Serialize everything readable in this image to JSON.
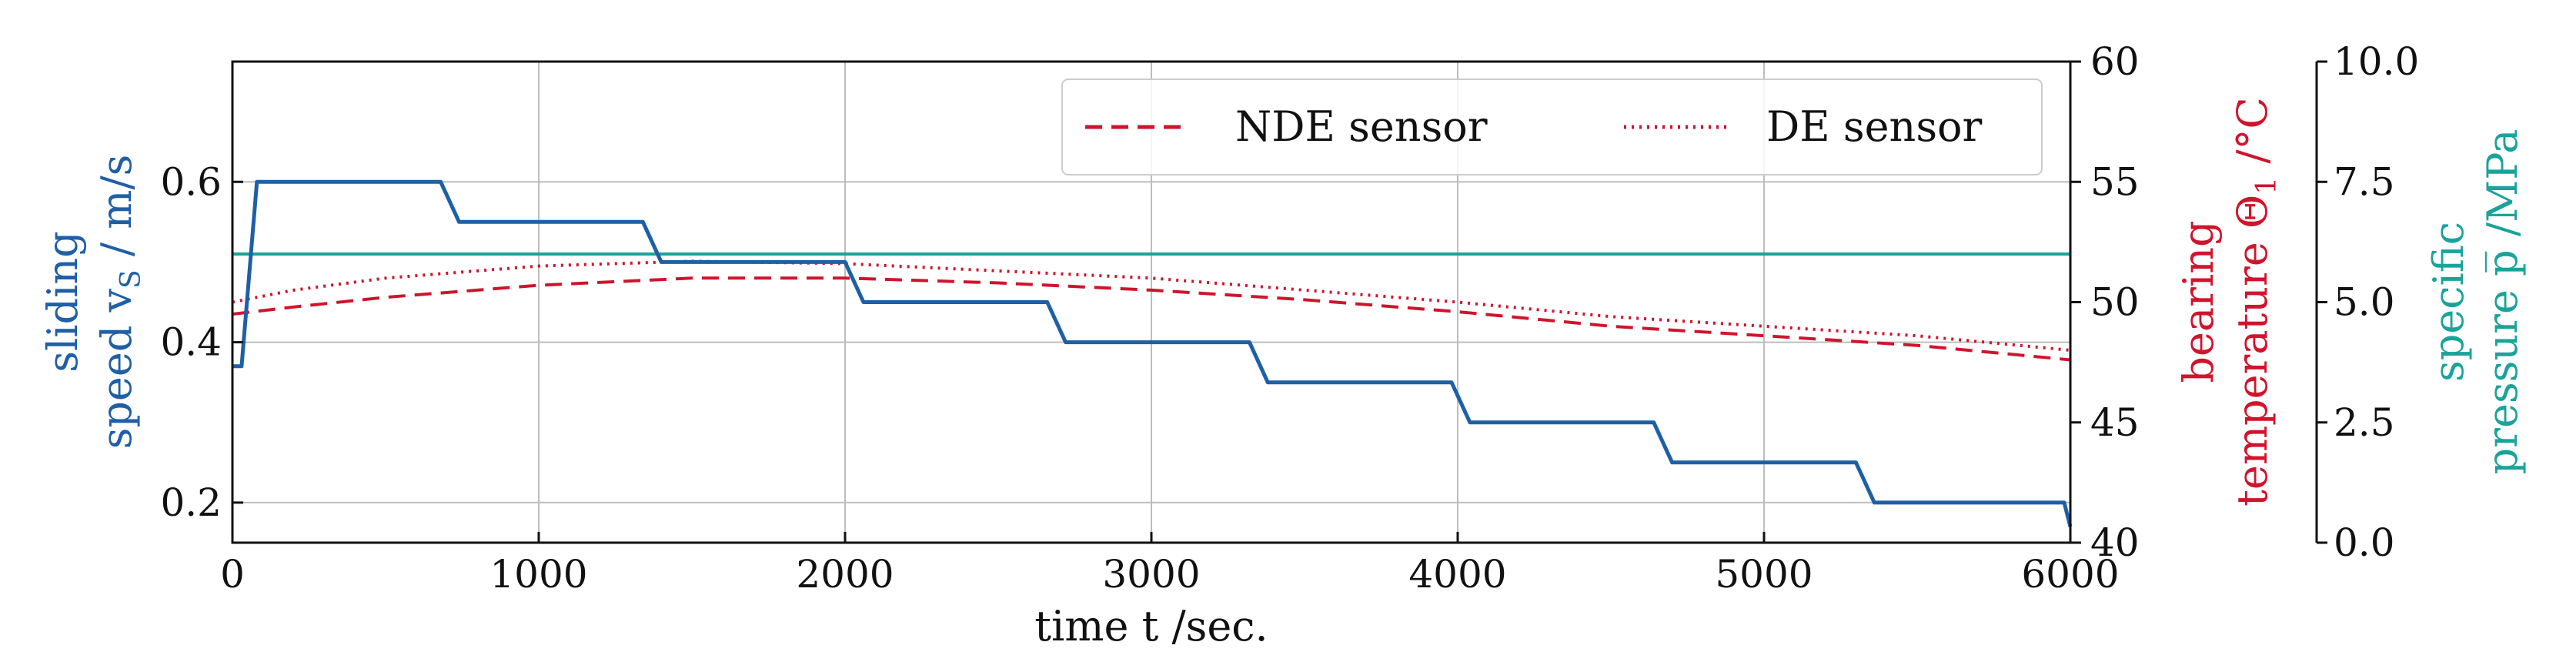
{
  "colors": {
    "speed": "#1f5fa6",
    "temperature": "#d0142c",
    "pressure": "#1aa39a",
    "grid": "#bdbdbd",
    "axis": "#111111"
  },
  "chart_data": {
    "type": "line",
    "xlabel": "time t /sec.",
    "x_ticks": [
      "0",
      "1000",
      "2000",
      "3000",
      "4000",
      "5000",
      "6000"
    ],
    "xlim": [
      0,
      6000
    ],
    "axes": {
      "speed": {
        "label_line1": "sliding",
        "label_line2": "speed v",
        "label_sub": "S",
        "label_unit": " / m/s",
        "ylim": [
          0.15,
          0.75
        ],
        "ticks": [
          "0.2",
          "0.4",
          "0.6"
        ],
        "tick_values": [
          0.2,
          0.4,
          0.6
        ]
      },
      "temperature": {
        "label_line1": "bearing",
        "label_line2": "temperature Θ",
        "label_sub": "1",
        "label_unit": " /°C",
        "ylim": [
          40,
          60
        ],
        "ticks": [
          "40",
          "45",
          "50",
          "55",
          "60"
        ],
        "tick_values": [
          40,
          45,
          50,
          55,
          60
        ]
      },
      "pressure": {
        "label_line1": "specific",
        "label_line2": "pressure p̅ /MPa",
        "ylim": [
          0,
          10
        ],
        "ticks": [
          "0.0",
          "2.5",
          "5.0",
          "7.5",
          "10.0"
        ],
        "tick_values": [
          0,
          2.5,
          5,
          7.5,
          10
        ]
      }
    },
    "legend": {
      "placement": "top-right",
      "entries": [
        "NDE sensor",
        "DE sensor"
      ]
    },
    "series": [
      {
        "key": "speed",
        "axis": "speed",
        "style": "solid",
        "x": [
          0,
          30,
          80,
          680,
          740,
          1340,
          1400,
          2000,
          2060,
          2660,
          2720,
          3320,
          3380,
          3980,
          4040,
          4640,
          4700,
          5300,
          5360,
          5980,
          6000
        ],
        "y": [
          0.37,
          0.37,
          0.6,
          0.6,
          0.55,
          0.55,
          0.5,
          0.5,
          0.45,
          0.45,
          0.4,
          0.4,
          0.35,
          0.35,
          0.3,
          0.3,
          0.25,
          0.25,
          0.2,
          0.2,
          0.17
        ]
      },
      {
        "key": "nde",
        "name": "NDE sensor",
        "axis": "temperature",
        "style": "dashed",
        "x": [
          0,
          200,
          500,
          1000,
          1500,
          2000,
          2500,
          3000,
          3500,
          4000,
          4500,
          5000,
          5500,
          6000
        ],
        "y": [
          49.5,
          49.8,
          50.2,
          50.7,
          51.0,
          51.0,
          50.8,
          50.5,
          50.1,
          49.6,
          49.0,
          48.6,
          48.2,
          47.6
        ]
      },
      {
        "key": "de",
        "name": "DE sensor",
        "axis": "temperature",
        "style": "dotted",
        "x": [
          0,
          200,
          500,
          1000,
          1500,
          2000,
          2500,
          3000,
          3500,
          4000,
          4500,
          5000,
          5500,
          6000
        ],
        "y": [
          50.0,
          50.5,
          51.0,
          51.5,
          51.7,
          51.6,
          51.3,
          51.0,
          50.5,
          50.0,
          49.4,
          49.0,
          48.6,
          48.0
        ]
      },
      {
        "key": "pressure",
        "axis": "pressure",
        "style": "solid",
        "x": [
          0,
          6000
        ],
        "y": [
          6.0,
          6.0
        ]
      }
    ],
    "grid": true
  }
}
